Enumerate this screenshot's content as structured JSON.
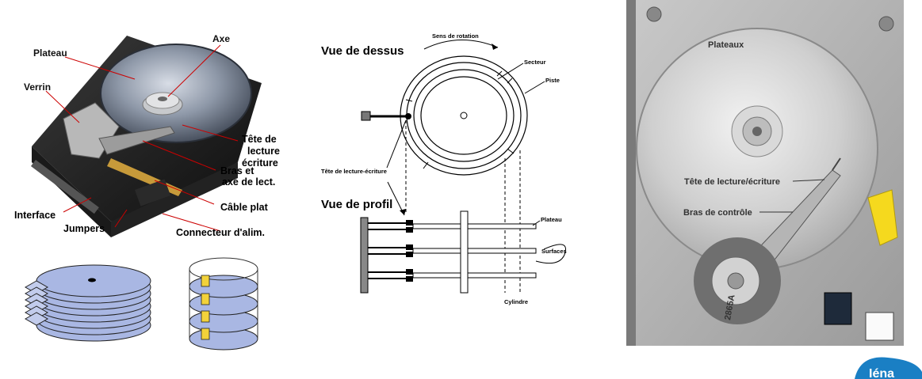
{
  "hdd_labels": {
    "plateau": "Plateau",
    "axe": "Axe",
    "verrin": "Verrin",
    "tete_l1": "Tête de",
    "tete_l2": "lecture",
    "tete_l3": "écriture",
    "bras_l1": "Bras et",
    "bras_l2": "axe de lect.",
    "cable": "Câble plat",
    "interface": "Interface",
    "jumpers": "Jumpers",
    "connecteur": "Connecteur d'alim."
  },
  "schematic": {
    "vue_dessus": "Vue de dessus",
    "sens_rotation": "Sens de rotation",
    "secteur": "Secteur",
    "piste": "Piste",
    "tete": "Tête de lecture-écriture",
    "vue_profil": "Vue de profil",
    "plateau": "Plateau",
    "surfaces": "Surfaces",
    "cylindre": "Cylindre"
  },
  "photo_labels": {
    "plateaux": "Plateaux",
    "tete": "Tête de lecture/écriture",
    "bras": "Bras de contrôle",
    "chip_text": "2865A"
  },
  "badge": {
    "text": "Iéna"
  },
  "colors": {
    "platter_blue": "#a9b7e3",
    "badge_blue": "#1a7fc4"
  }
}
